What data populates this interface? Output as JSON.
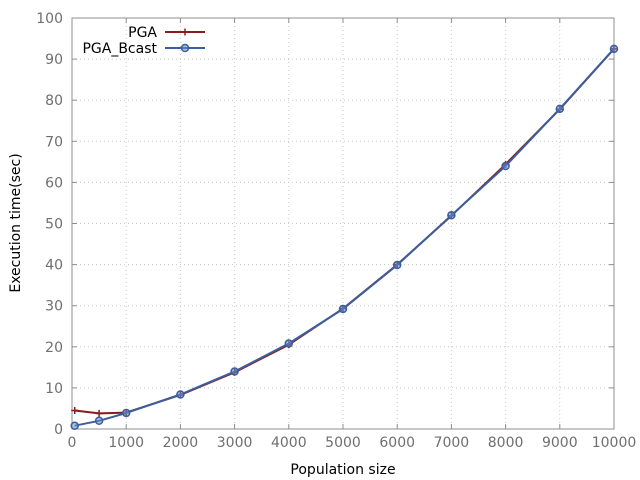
{
  "chart_data": {
    "type": "line",
    "title": "",
    "xlabel": "Population size",
    "ylabel": "Execution time(sec)",
    "xlim": [
      0,
      10000
    ],
    "ylim": [
      0,
      100
    ],
    "xticks": [
      0,
      1000,
      2000,
      3000,
      4000,
      5000,
      6000,
      7000,
      8000,
      9000,
      10000
    ],
    "yticks": [
      0,
      10,
      20,
      30,
      40,
      50,
      60,
      70,
      80,
      90,
      100
    ],
    "grid": true,
    "legend_position": "top-left",
    "series": [
      {
        "name": "PGA",
        "color": "#8b1a1a",
        "marker": "plus",
        "x": [
          50,
          500,
          1000,
          2000,
          3000,
          4000,
          5000,
          6000,
          7000,
          8000,
          9000,
          10000
        ],
        "y": [
          4.5,
          3.8,
          4.0,
          8.3,
          13.8,
          20.5,
          29.3,
          40.0,
          51.9,
          64.4,
          77.8,
          92.5
        ]
      },
      {
        "name": "PGA_Bcast",
        "color": "#3a5f9e",
        "marker": "circle",
        "x": [
          50,
          500,
          1000,
          2000,
          3000,
          4000,
          5000,
          6000,
          7000,
          8000,
          9000,
          10000
        ],
        "y": [
          0.8,
          2.0,
          3.9,
          8.4,
          14.0,
          20.8,
          29.2,
          39.9,
          52.0,
          64.0,
          77.9,
          92.5
        ]
      }
    ]
  }
}
